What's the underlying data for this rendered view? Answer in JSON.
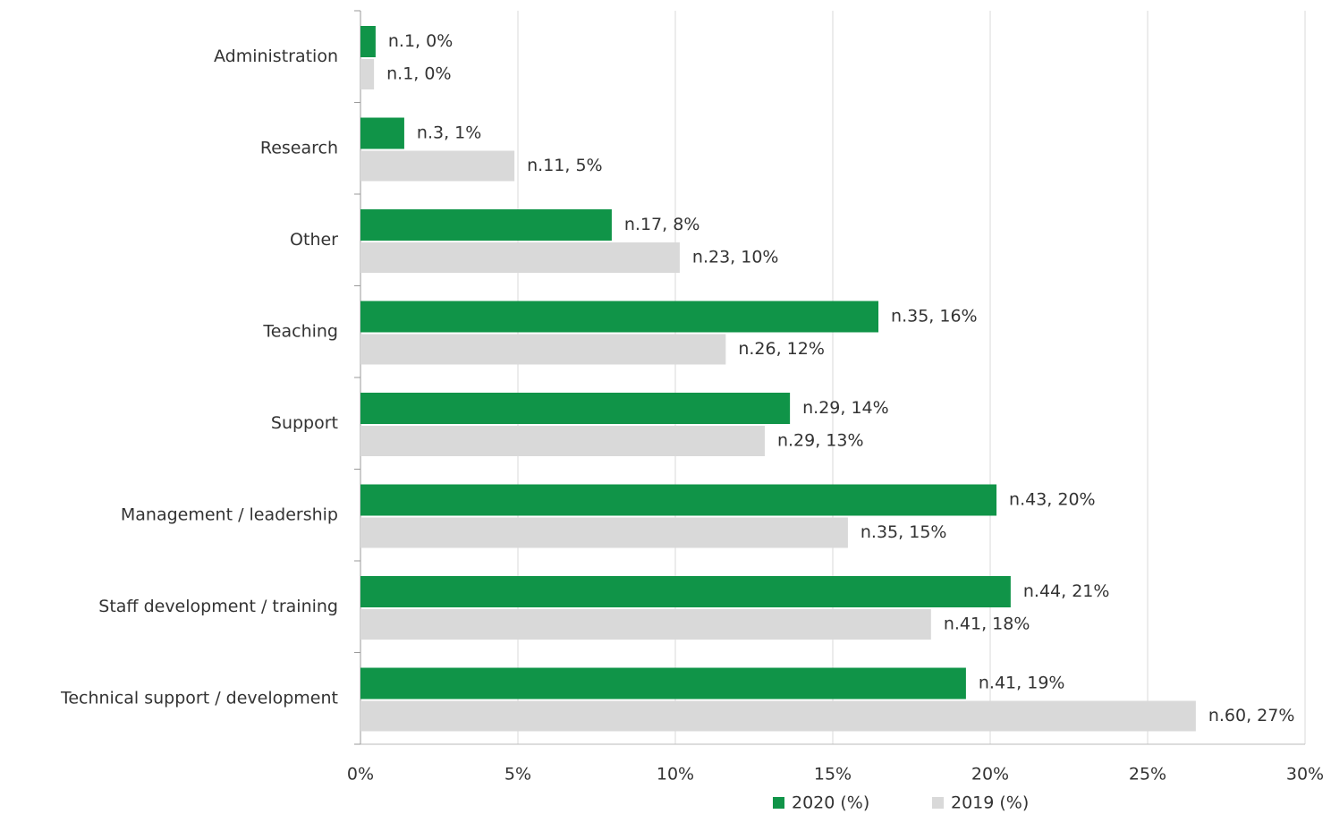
{
  "chart_data": {
    "type": "bar",
    "orientation": "horizontal",
    "categories": [
      "Administration",
      "Research",
      "Other",
      "Teaching",
      "Support",
      "Management / leadership",
      "Staff development / training",
      "Technical support / development"
    ],
    "series": [
      {
        "name": "2020 (%)",
        "color": "#109448",
        "values": [
          0.48,
          1.39,
          7.98,
          16.45,
          13.64,
          20.2,
          20.65,
          19.23
        ],
        "value_labels": [
          "n.1, 0%",
          "n.3, 1%",
          "n.17, 8%",
          "n.35, 16%",
          "n.29, 14%",
          "n.43, 20%",
          "n.44, 21%",
          "n.41, 19%"
        ]
      },
      {
        "name": "2019 (%)",
        "color": "#d9d9d9",
        "values": [
          0.43,
          4.89,
          10.14,
          11.6,
          12.84,
          15.48,
          18.12,
          26.53
        ],
        "value_labels": [
          "n.1, 0%",
          "n.11, 5%",
          "n.23, 10%",
          "n.26, 12%",
          "n.29, 13%",
          "n.35, 15%",
          "n.41, 18%",
          "n.60, 27%"
        ]
      }
    ],
    "xlim": [
      0,
      30
    ],
    "xticks": [
      {
        "value": 0,
        "label": "0%"
      },
      {
        "value": 5,
        "label": "5%"
      },
      {
        "value": 10,
        "label": "10%"
      },
      {
        "value": 15,
        "label": "15%"
      },
      {
        "value": 20,
        "label": "20%"
      },
      {
        "value": 25,
        "label": "25%"
      },
      {
        "value": 30,
        "label": "30%"
      }
    ],
    "grid": true,
    "legend": "bottom"
  }
}
